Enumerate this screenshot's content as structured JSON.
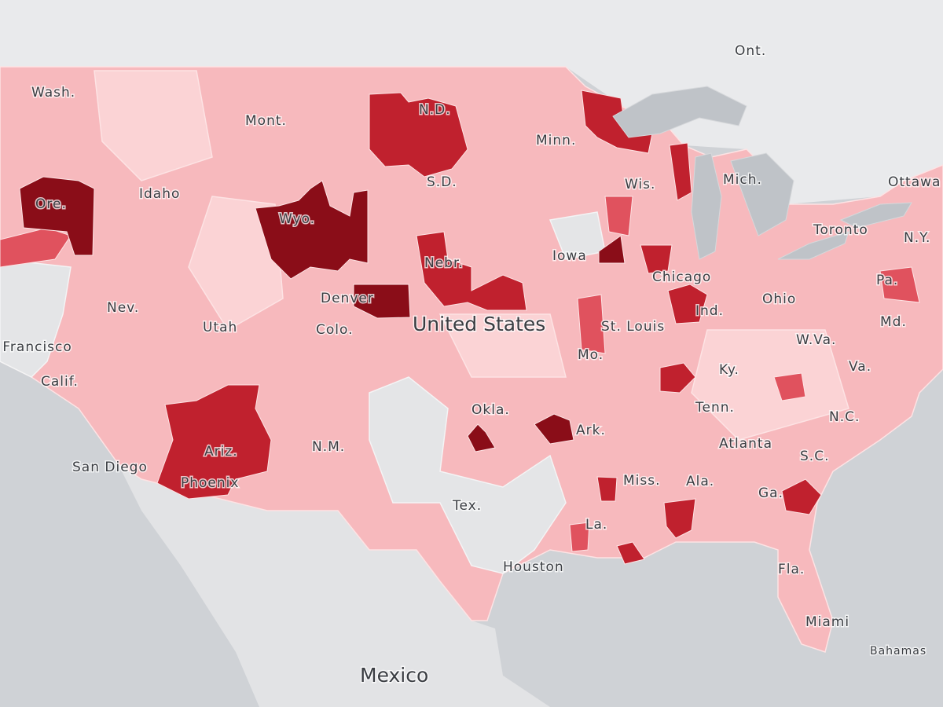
{
  "map": {
    "labels": [
      "Ont.",
      "Wash.",
      "Mont.",
      "N.D.",
      "Minn.",
      "Mich.",
      "Ottawa",
      "Ore.",
      "Idaho",
      "Wyo.",
      "S.D.",
      "Wis.",
      "Toronto",
      "N.Y.",
      "Iowa",
      "Nebr.",
      "Chicago",
      "Pa.",
      "Denver",
      "Nev.",
      "Utah",
      "Colo.",
      "United States",
      "St. Louis",
      "Ind.",
      "Ohio",
      "Md.",
      "San Francisco",
      "W.Va.",
      "Mo.",
      "Ky.",
      "Va.",
      "Calif.",
      "Tenn.",
      "N.C.",
      "Okla.",
      "Ark.",
      "Atlanta",
      "S.C.",
      "N.M.",
      "San Diego",
      "Ariz.",
      "Phoenix",
      "Miss.",
      "Ala.",
      "Ga.",
      "Tex.",
      "La.",
      "Houston",
      "Fla.",
      "Miami",
      "Bahamas",
      "Mexico"
    ]
  }
}
